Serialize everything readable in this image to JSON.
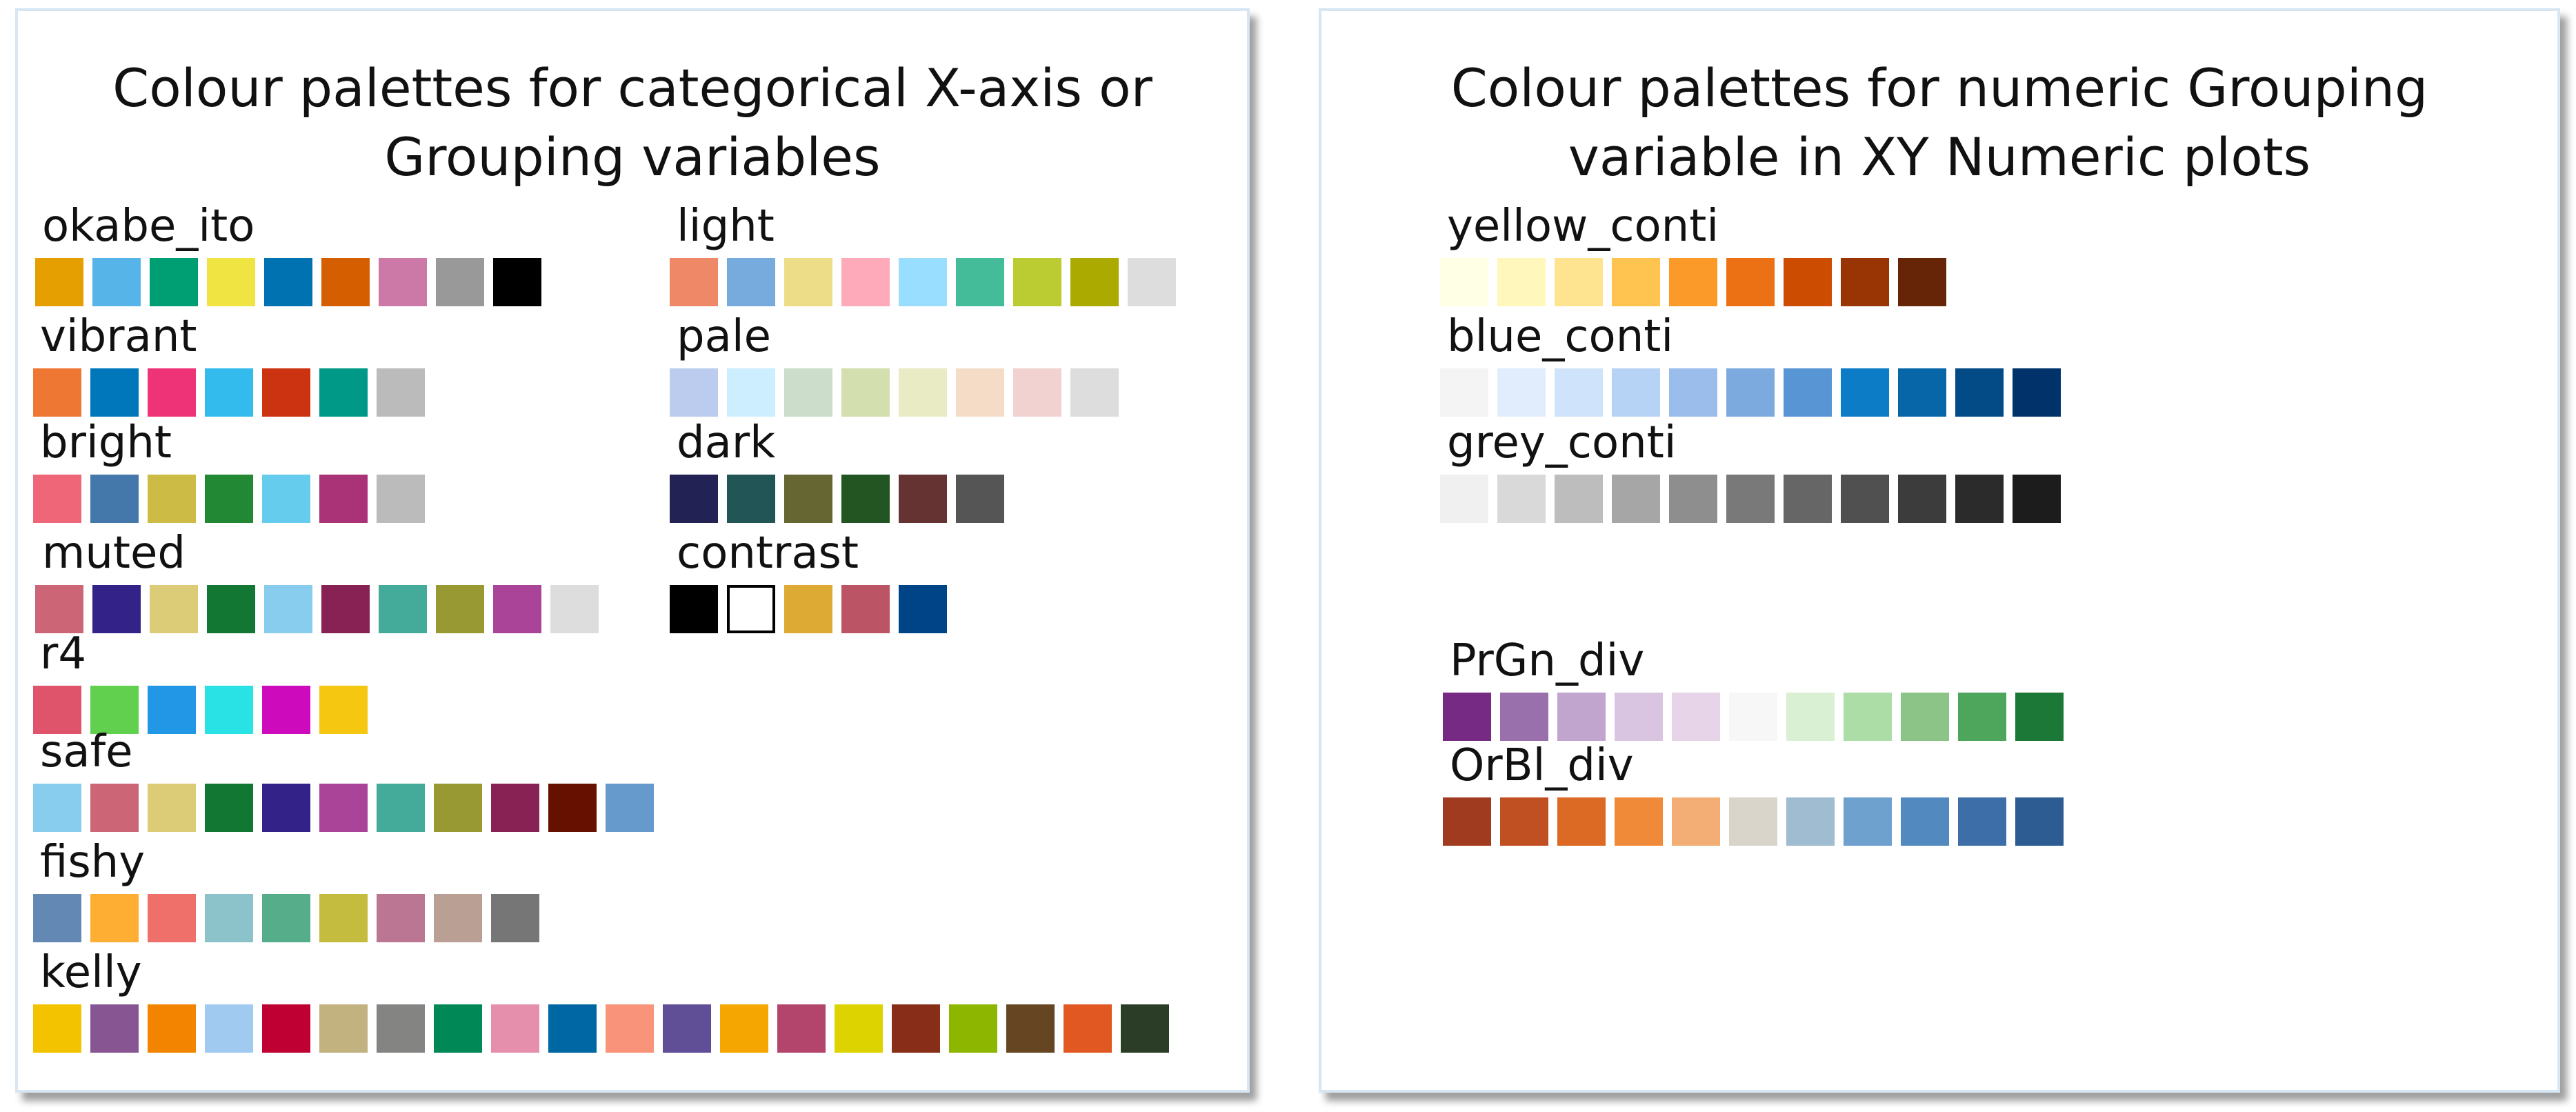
{
  "left_panel": {
    "title_line1": "Colour palettes for categorical X-axis or",
    "title_line2": "Grouping variables",
    "palettes": [
      {
        "name": "okabe_ito",
        "colors": [
          "#E69F00",
          "#56B4E9",
          "#009E73",
          "#F0E442",
          "#0072B2",
          "#D55E00",
          "#CC79A7",
          "#999999",
          "#000000"
        ]
      },
      {
        "name": "vibrant",
        "colors": [
          "#EE7733",
          "#0077BB",
          "#EE3377",
          "#33BBEE",
          "#CC3311",
          "#009988",
          "#BBBBBB"
        ]
      },
      {
        "name": "bright",
        "colors": [
          "#EE6677",
          "#4477AA",
          "#CCBB44",
          "#228833",
          "#66CCEE",
          "#AA3377",
          "#BBBBBB"
        ]
      },
      {
        "name": "muted",
        "colors": [
          "#CC6677",
          "#332288",
          "#DDCC77",
          "#117733",
          "#88CCEE",
          "#882255",
          "#44AA99",
          "#999933",
          "#AA4499",
          "#DDDDDD"
        ]
      },
      {
        "name": "r4",
        "colors": [
          "#DF536B",
          "#61D04F",
          "#2297E6",
          "#28E2E5",
          "#CD0BBC",
          "#F5C710"
        ]
      },
      {
        "name": "safe",
        "colors": [
          "#88CCEE",
          "#CC6677",
          "#DDCC77",
          "#117733",
          "#332288",
          "#AA4499",
          "#44AA99",
          "#999933",
          "#882255",
          "#661100",
          "#6699CC"
        ]
      },
      {
        "name": "fishy",
        "colors": [
          "#6388B4",
          "#FFAE34",
          "#EF6F6A",
          "#8CC2CA",
          "#55AD89",
          "#C3BC3F",
          "#BB7693",
          "#BAA094",
          "#767676"
        ]
      },
      {
        "name": "kelly",
        "colors": [
          "#F3C300",
          "#875692",
          "#F38400",
          "#A1CAF1",
          "#BE0032",
          "#C2B280",
          "#848482",
          "#008856",
          "#E68FAC",
          "#0067A5",
          "#F99379",
          "#604E97",
          "#F6A600",
          "#B3446C",
          "#DCD300",
          "#882D17",
          "#8DB600",
          "#654522",
          "#E25822",
          "#2B3D26"
        ]
      },
      {
        "name": "light",
        "colors": [
          "#EE8866",
          "#77AADD",
          "#EEDD88",
          "#FFAABB",
          "#99DDFF",
          "#44BB99",
          "#BBCC33",
          "#AAAA00",
          "#DDDDDD"
        ]
      },
      {
        "name": "pale",
        "colors": [
          "#BBCCEE",
          "#CCEEFF",
          "#CCDDCC",
          "#D3DFAE",
          "#E8EBC3",
          "#F4DCC6",
          "#F2D1D1",
          "#DDDDDD"
        ]
      },
      {
        "name": "dark",
        "colors": [
          "#222255",
          "#225555",
          "#666633",
          "#225522",
          "#663333",
          "#555555"
        ]
      },
      {
        "name": "contrast",
        "colors": [
          "#000000",
          "#FFFFFF",
          "#DDAA33",
          "#BB5566",
          "#004488"
        ]
      }
    ]
  },
  "right_panel": {
    "title_line1": "Colour palettes for numeric Grouping",
    "title_line2": "variable in XY Numeric plots",
    "palettes": [
      {
        "name": "yellow_conti",
        "colors": [
          "#FFFFE5",
          "#FFF7BC",
          "#FEE391",
          "#FEC44F",
          "#FB9A29",
          "#EC7014",
          "#CC4C02",
          "#993404",
          "#662506"
        ]
      },
      {
        "name": "blue_conti",
        "colors": [
          "#F4F4F4",
          "#E1EDFC",
          "#CFE3FB",
          "#B6D2F5",
          "#9ABDEC",
          "#7CAADF",
          "#5795D4",
          "#0D7CC6",
          "#0766A8",
          "#034B86",
          "#02326A"
        ]
      },
      {
        "name": "grey_conti",
        "colors": [
          "#F0F0F0",
          "#D9D9D9",
          "#BDBDBD",
          "#A6A6A6",
          "#8E8E8E",
          "#797979",
          "#666666",
          "#505050",
          "#3C3C3C",
          "#2B2B2B",
          "#1C1C1C"
        ]
      },
      {
        "name": "PrGn_div",
        "colors": [
          "#762A83",
          "#9970AB",
          "#C2A5CF",
          "#D9C5E1",
          "#E7D4E8",
          "#F7F7F7",
          "#D9F0D3",
          "#ACDDA7",
          "#8CC386",
          "#4EA55C",
          "#1B7837"
        ]
      },
      {
        "name": "OrBl_div",
        "colors": [
          "#A03B20",
          "#C04F22",
          "#DC6A25",
          "#F08A38",
          "#F2AE74",
          "#D9D5CA",
          "#A0BCD0",
          "#6FA1CF",
          "#5289BE",
          "#3E6EA7",
          "#2C5C91"
        ]
      }
    ]
  }
}
